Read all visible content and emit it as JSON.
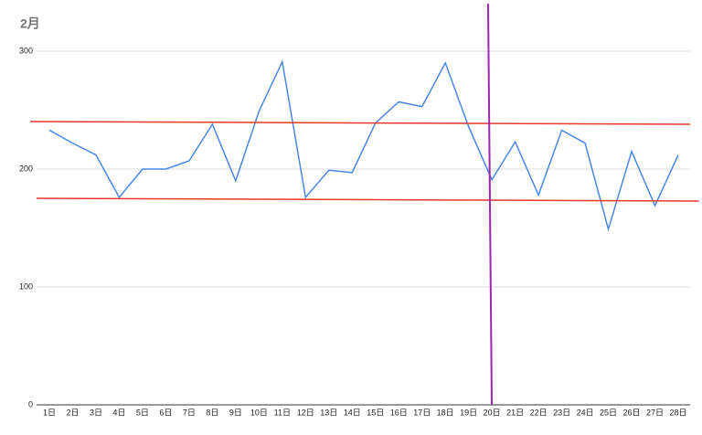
{
  "chart_data": {
    "type": "line",
    "title": "2月",
    "categories": [
      "1日",
      "2日",
      "3日",
      "4日",
      "5日",
      "6日",
      "7日",
      "8日",
      "9日",
      "10日",
      "11日",
      "12日",
      "13日",
      "14日",
      "15日",
      "16日",
      "17日",
      "18日",
      "19日",
      "20日",
      "21日",
      "22日",
      "23日",
      "24日",
      "25日",
      "26日",
      "27日",
      "28日"
    ],
    "values": [
      233,
      222,
      212,
      176,
      200,
      200,
      207,
      238,
      190,
      249,
      291,
      176,
      199,
      197,
      239,
      257,
      253,
      290,
      236,
      191,
      223,
      178,
      233,
      222,
      149,
      215,
      169,
      212
    ],
    "color": "#4a86e8",
    "ylim": [
      0,
      300
    ],
    "yticks": [
      0,
      100,
      200,
      300
    ],
    "grid": true
  }
}
